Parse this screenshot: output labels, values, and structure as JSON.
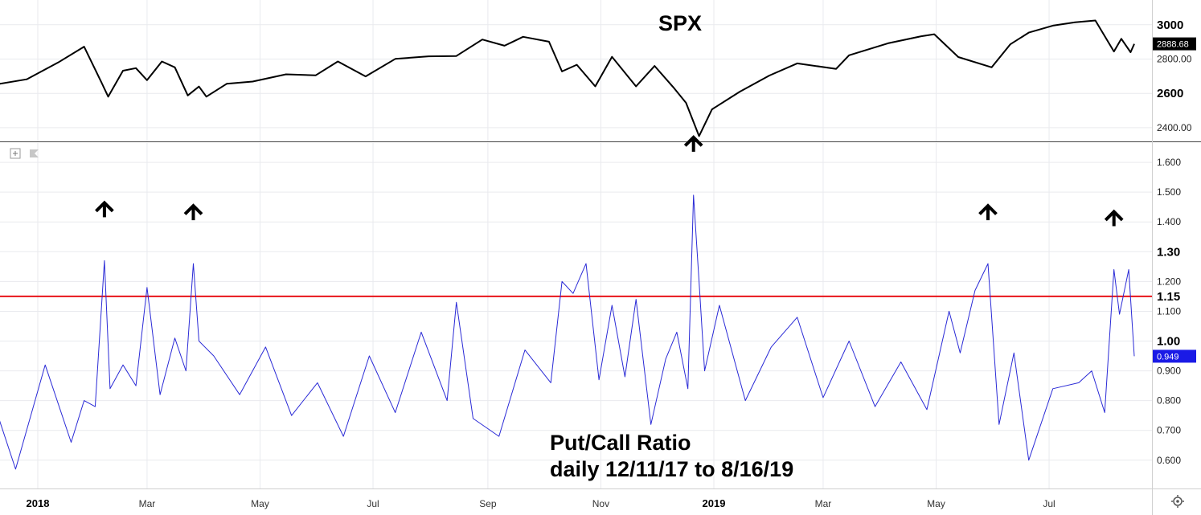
{
  "colors": {
    "spx_line": "#000000",
    "pcr_line": "#2a2ad6",
    "threshold": "#e8141a",
    "grid": "#e9eaee",
    "badge_spx_bg": "#000000",
    "badge_pcr_bg": "#1a1ae6"
  },
  "icons": {
    "plus_box": "plus-square-icon",
    "flag": "flag-icon",
    "settings": "gear-icon",
    "arrow": "up-arrow-icon"
  },
  "chart_data": [
    {
      "type": "line",
      "title": "SPX",
      "ylim": [
        2320,
        3060
      ],
      "y_ticks": [
        {
          "value": 2400,
          "label": "2400.00",
          "bold": false
        },
        {
          "value": 2600,
          "label": "2600",
          "bold": true
        },
        {
          "value": 2800,
          "label": "2800.00",
          "bold": false
        },
        {
          "value": 3000,
          "label": "3000",
          "bold": true
        }
      ],
      "current_value": 2888.68,
      "current_label": "2888.68",
      "grid": true,
      "series": [
        {
          "x": [
            "2017-12-11",
            "2017-12-26",
            "2018-01-12",
            "2018-01-26",
            "2018-02-05",
            "2018-02-08",
            "2018-02-16",
            "2018-02-23",
            "2018-03-01",
            "2018-03-09",
            "2018-03-16",
            "2018-03-23",
            "2018-03-29",
            "2018-04-02",
            "2018-04-13",
            "2018-04-27",
            "2018-05-15",
            "2018-05-31",
            "2018-06-12",
            "2018-06-27",
            "2018-07-13",
            "2018-07-31",
            "2018-08-15",
            "2018-08-29",
            "2018-09-10",
            "2018-09-20",
            "2018-10-04",
            "2018-10-11",
            "2018-10-19",
            "2018-10-29",
            "2018-11-07",
            "2018-11-20",
            "2018-11-30",
            "2018-12-10",
            "2018-12-17",
            "2018-12-24",
            "2018-12-31",
            "2019-01-15",
            "2019-01-31",
            "2019-02-15",
            "2019-03-08",
            "2019-03-15",
            "2019-04-05",
            "2019-04-23",
            "2019-04-30",
            "2019-05-13",
            "2019-05-31",
            "2019-06-10",
            "2019-06-20",
            "2019-07-03",
            "2019-07-15",
            "2019-07-26",
            "2019-08-05",
            "2019-08-09",
            "2019-08-14",
            "2019-08-16"
          ],
          "values": [
            2655,
            2682,
            2780,
            2872,
            2650,
            2581,
            2732,
            2747,
            2677,
            2786,
            2752,
            2588,
            2640,
            2581,
            2656,
            2669,
            2711,
            2705,
            2786,
            2699,
            2801,
            2816,
            2818,
            2914,
            2878,
            2930,
            2901,
            2728,
            2767,
            2641,
            2813,
            2641,
            2760,
            2637,
            2545,
            2351,
            2507,
            2610,
            2704,
            2775,
            2743,
            2822,
            2892,
            2933,
            2945,
            2812,
            2752,
            2886,
            2954,
            2995,
            3014,
            3025,
            2844,
            2918,
            2840,
            2888.68
          ]
        }
      ]
    },
    {
      "type": "line",
      "ylim": [
        0.505,
        1.665
      ],
      "y_ticks": [
        {
          "value": 0.6,
          "label": "0.600",
          "bold": false
        },
        {
          "value": 0.7,
          "label": "0.700",
          "bold": false
        },
        {
          "value": 0.8,
          "label": "0.800",
          "bold": false
        },
        {
          "value": 0.9,
          "label": "0.900",
          "bold": false
        },
        {
          "value": 1.0,
          "label": "1.00",
          "bold": true
        },
        {
          "value": 1.1,
          "label": "1.100",
          "bold": false
        },
        {
          "value": 1.15,
          "label": "1.15",
          "bold": true
        },
        {
          "value": 1.2,
          "label": "1.200",
          "bold": false
        },
        {
          "value": 1.3,
          "label": "1.30",
          "bold": true
        },
        {
          "value": 1.4,
          "label": "1.400",
          "bold": false
        },
        {
          "value": 1.5,
          "label": "1.500",
          "bold": false
        },
        {
          "value": 1.6,
          "label": "1.600",
          "bold": false
        }
      ],
      "current_value": 0.949,
      "current_label": "0.949",
      "threshold": 1.15,
      "grid": true,
      "annotation_lines": [
        "Put/Call Ratio",
        "daily 12/11/17 to 8/16/19"
      ],
      "spike_markers": [
        "2018-02-06",
        "2018-03-26",
        "2018-12-21",
        "2019-05-29",
        "2019-08-05"
      ],
      "series": [
        {
          "x": [
            "2017-12-11",
            "2017-12-20",
            "2018-01-05",
            "2018-01-19",
            "2018-01-26",
            "2018-02-01",
            "2018-02-06",
            "2018-02-09",
            "2018-02-16",
            "2018-02-23",
            "2018-03-01",
            "2018-03-08",
            "2018-03-16",
            "2018-03-22",
            "2018-03-26",
            "2018-03-29",
            "2018-04-06",
            "2018-04-20",
            "2018-05-04",
            "2018-05-18",
            "2018-06-01",
            "2018-06-15",
            "2018-06-29",
            "2018-07-13",
            "2018-07-27",
            "2018-08-10",
            "2018-08-15",
            "2018-08-24",
            "2018-09-07",
            "2018-09-21",
            "2018-10-05",
            "2018-10-11",
            "2018-10-17",
            "2018-10-24",
            "2018-10-31",
            "2018-11-07",
            "2018-11-14",
            "2018-11-20",
            "2018-11-28",
            "2018-12-06",
            "2018-12-12",
            "2018-12-18",
            "2018-12-21",
            "2018-12-24",
            "2018-12-27",
            "2019-01-04",
            "2019-01-18",
            "2019-02-01",
            "2019-02-15",
            "2019-03-01",
            "2019-03-15",
            "2019-03-29",
            "2019-04-12",
            "2019-04-26",
            "2019-05-08",
            "2019-05-14",
            "2019-05-22",
            "2019-05-29",
            "2019-06-04",
            "2019-06-12",
            "2019-06-20",
            "2019-07-03",
            "2019-07-17",
            "2019-07-24",
            "2019-07-31",
            "2019-08-05",
            "2019-08-08",
            "2019-08-13",
            "2019-08-16"
          ],
          "values": [
            0.74,
            0.57,
            0.92,
            0.66,
            0.8,
            0.78,
            1.27,
            0.84,
            0.92,
            0.85,
            1.18,
            0.82,
            1.01,
            0.9,
            1.26,
            1.0,
            0.95,
            0.82,
            0.98,
            0.75,
            0.86,
            0.68,
            0.95,
            0.76,
            1.03,
            0.8,
            1.13,
            0.74,
            0.68,
            0.97,
            0.86,
            1.2,
            1.16,
            1.26,
            0.87,
            1.12,
            0.88,
            1.14,
            0.72,
            0.94,
            1.03,
            0.84,
            1.49,
            1.2,
            0.9,
            1.12,
            0.8,
            0.98,
            1.08,
            0.81,
            1.0,
            0.78,
            0.93,
            0.77,
            1.1,
            0.96,
            1.17,
            1.26,
            0.72,
            0.96,
            0.6,
            0.84,
            0.86,
            0.9,
            0.76,
            1.24,
            1.09,
            1.24,
            0.949
          ]
        }
      ]
    }
  ],
  "x_axis": {
    "labels": [
      {
        "date": "2018-01-01",
        "text": "2018",
        "bold": true
      },
      {
        "date": "2018-03-01",
        "text": "Mar",
        "bold": false
      },
      {
        "date": "2018-05-01",
        "text": "May",
        "bold": false
      },
      {
        "date": "2018-07-01",
        "text": "Jul",
        "bold": false
      },
      {
        "date": "2018-09-01",
        "text": "Sep",
        "bold": false
      },
      {
        "date": "2018-11-01",
        "text": "Nov",
        "bold": false
      },
      {
        "date": "2019-01-01",
        "text": "2019",
        "bold": true
      },
      {
        "date": "2019-03-01",
        "text": "Mar",
        "bold": false
      },
      {
        "date": "2019-05-01",
        "text": "May",
        "bold": false
      },
      {
        "date": "2019-07-01",
        "text": "Jul",
        "bold": false
      }
    ]
  }
}
